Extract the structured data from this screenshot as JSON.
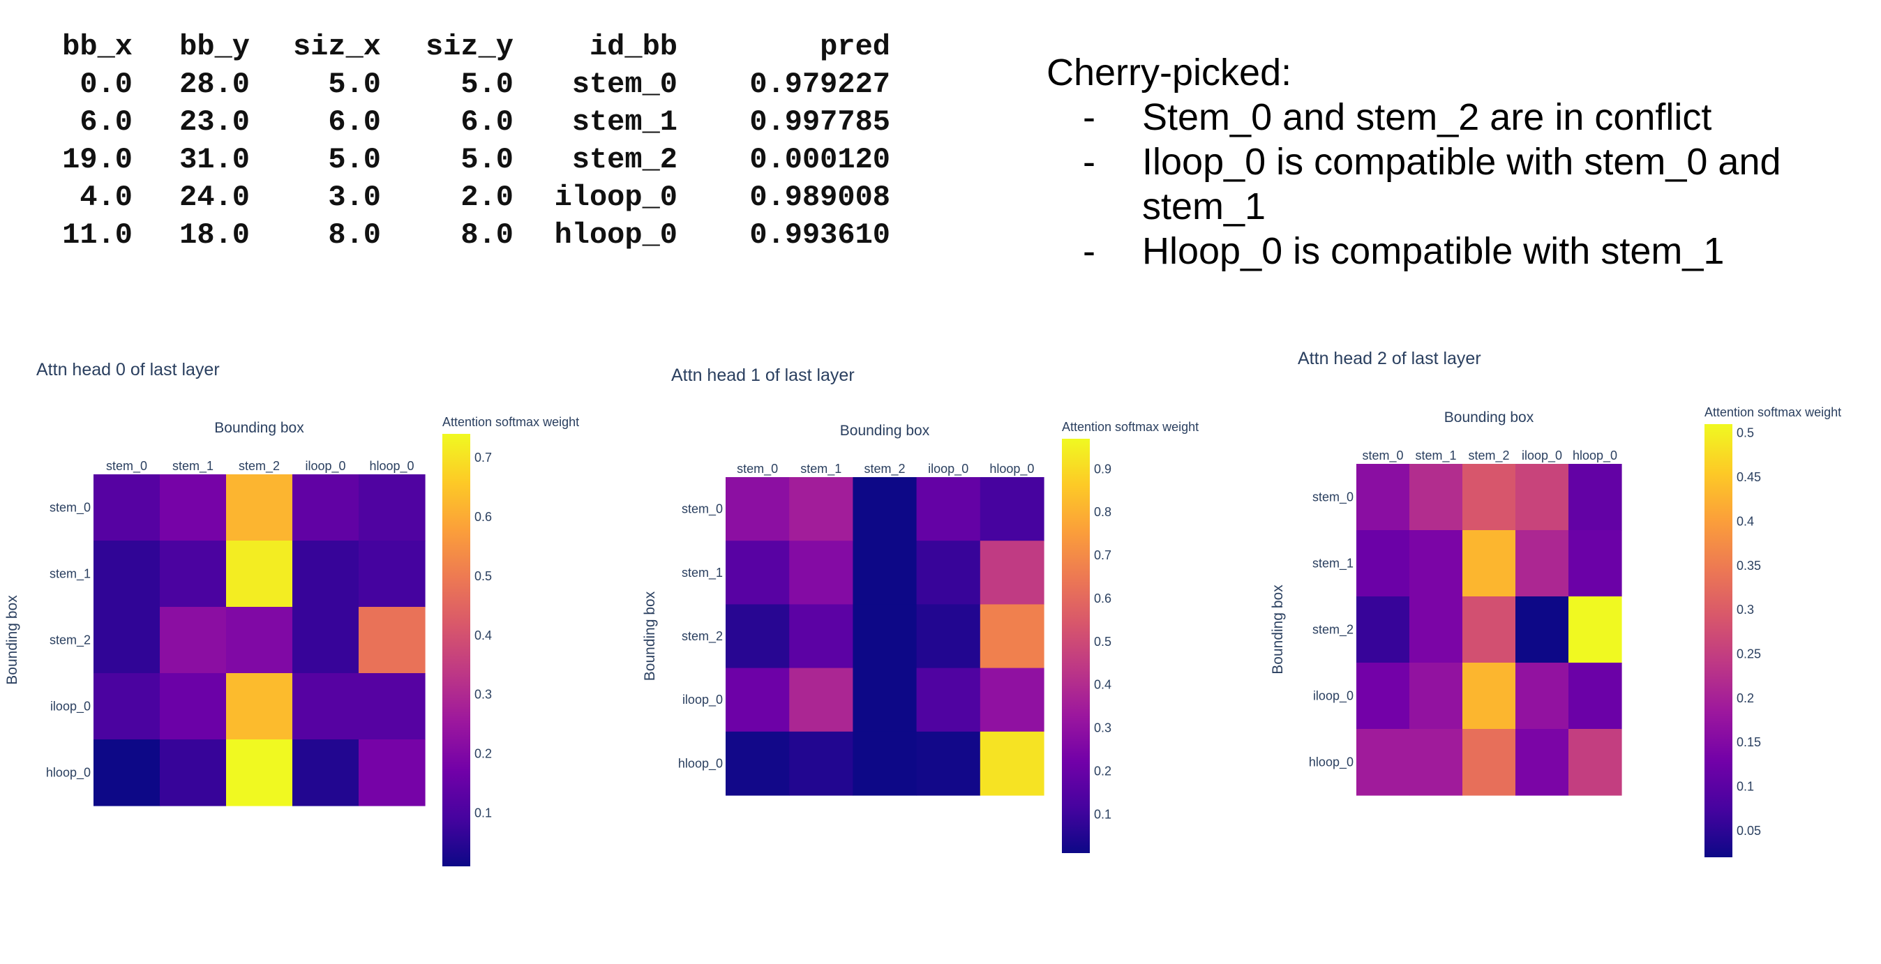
{
  "table": {
    "headers": [
      "bb_x",
      "bb_y",
      "siz_x",
      "siz_y",
      "id_bb",
      "pred"
    ],
    "rows": [
      [
        "0.0",
        "28.0",
        "5.0",
        "5.0",
        "stem_0",
        "0.979227"
      ],
      [
        "6.0",
        "23.0",
        "6.0",
        "6.0",
        "stem_1",
        "0.997785"
      ],
      [
        "19.0",
        "31.0",
        "5.0",
        "5.0",
        "stem_2",
        "0.000120"
      ],
      [
        "4.0",
        "24.0",
        "3.0",
        "2.0",
        "iloop_0",
        "0.989008"
      ],
      [
        "11.0",
        "18.0",
        "8.0",
        "8.0",
        "hloop_0",
        "0.993610"
      ]
    ]
  },
  "notes": {
    "title": "Cherry-picked:",
    "bullet": "-",
    "items": [
      "Stem_0 and stem_2 are in conflict",
      "Iloop_0 is compatible with stem_0 and stem_1",
      "Hloop_0 is compatible with stem_1"
    ]
  },
  "chart_data": [
    {
      "type": "heatmap",
      "title": "Attn head 0 of last layer",
      "xlabel": "Bounding box",
      "ylabel": "Bounding box",
      "x": [
        "stem_0",
        "stem_1",
        "stem_2",
        "iloop_0",
        "hloop_0"
      ],
      "y": [
        "stem_0",
        "stem_1",
        "stem_2",
        "iloop_0",
        "hloop_0"
      ],
      "z": [
        [
          0.12,
          0.18,
          0.62,
          0.14,
          0.11
        ],
        [
          0.06,
          0.1,
          0.72,
          0.07,
          0.09
        ],
        [
          0.06,
          0.22,
          0.2,
          0.07,
          0.48
        ],
        [
          0.1,
          0.16,
          0.63,
          0.12,
          0.12
        ],
        [
          0.01,
          0.07,
          0.74,
          0.04,
          0.18
        ]
      ],
      "colorbar_title": "Attention softmax weight",
      "zrange": [
        0.01,
        0.74
      ],
      "colorbar_ticks": [
        "0.1",
        "0.2",
        "0.3",
        "0.4",
        "0.5",
        "0.6",
        "0.7"
      ],
      "colorscale": [
        "#0d0887",
        "#46039f",
        "#7201a8",
        "#9c179e",
        "#bd3786",
        "#d8576b",
        "#ed7953",
        "#fb9f3a",
        "#fdca26",
        "#f0f921"
      ]
    },
    {
      "type": "heatmap",
      "title": "Attn head 1 of last layer",
      "xlabel": "Bounding box",
      "ylabel": "Bounding box",
      "x": [
        "stem_0",
        "stem_1",
        "stem_2",
        "iloop_0",
        "hloop_0"
      ],
      "y": [
        "stem_0",
        "stem_1",
        "stem_2",
        "iloop_0",
        "hloop_0"
      ],
      "z": [
        [
          0.29,
          0.35,
          0.01,
          0.19,
          0.12
        ],
        [
          0.16,
          0.27,
          0.01,
          0.09,
          0.45
        ],
        [
          0.06,
          0.17,
          0.01,
          0.05,
          0.67
        ],
        [
          0.21,
          0.38,
          0.01,
          0.14,
          0.3
        ],
        [
          0.02,
          0.05,
          0.01,
          0.02,
          0.92
        ]
      ],
      "colorbar_title": "Attention softmax weight",
      "zrange": [
        0.01,
        0.97
      ],
      "colorbar_ticks": [
        "0.1",
        "0.2",
        "0.3",
        "0.4",
        "0.5",
        "0.6",
        "0.7",
        "0.8",
        "0.9"
      ],
      "colorscale": [
        "#0d0887",
        "#46039f",
        "#7201a8",
        "#9c179e",
        "#bd3786",
        "#d8576b",
        "#ed7953",
        "#fb9f3a",
        "#fdca26",
        "#f0f921"
      ]
    },
    {
      "type": "heatmap",
      "title": "Attn head 2 of last layer",
      "xlabel": "Bounding box",
      "ylabel": "Bounding box",
      "x": [
        "stem_0",
        "stem_1",
        "stem_2",
        "iloop_0",
        "hloop_0"
      ],
      "y": [
        "stem_0",
        "stem_1",
        "stem_2",
        "iloop_0",
        "hloop_0"
      ],
      "z": [
        [
          0.16,
          0.22,
          0.29,
          0.26,
          0.11
        ],
        [
          0.12,
          0.14,
          0.43,
          0.21,
          0.12
        ],
        [
          0.06,
          0.14,
          0.28,
          0.02,
          0.51
        ],
        [
          0.13,
          0.17,
          0.43,
          0.17,
          0.12
        ],
        [
          0.19,
          0.19,
          0.33,
          0.14,
          0.25
        ]
      ],
      "colorbar_title": "Attention softmax weight",
      "zrange": [
        0.02,
        0.51
      ],
      "colorbar_ticks": [
        "0.05",
        "0.1",
        "0.15",
        "0.2",
        "0.25",
        "0.3",
        "0.35",
        "0.4",
        "0.45",
        "0.5"
      ],
      "colorscale": [
        "#0d0887",
        "#46039f",
        "#7201a8",
        "#9c179e",
        "#bd3786",
        "#d8576b",
        "#ed7953",
        "#fb9f3a",
        "#fdca26",
        "#f0f921"
      ]
    }
  ]
}
